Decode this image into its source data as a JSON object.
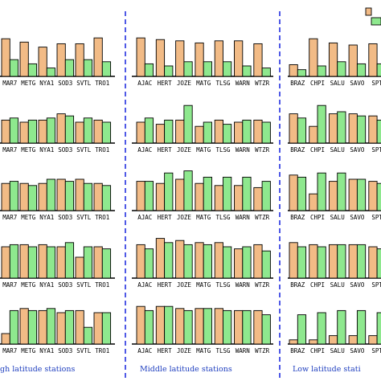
{
  "colors": {
    "series_a": "#f2bb86",
    "series_b": "#8ee88e",
    "divider": "#2330e0",
    "group_label": "#1f3fbf"
  },
  "chart_data": {
    "type": "bar",
    "grid": false,
    "legend": "top-right",
    "groups": [
      {
        "label": "High latitude stations",
        "label_visible": "gh latitude stations",
        "stations": [
          "MAR7",
          "METG",
          "NYA1",
          "SOD3",
          "SVTL",
          "TRO1"
        ]
      },
      {
        "label": "Middle latitude stations",
        "label_visible": "Middle latitude stations",
        "stations": [
          "AJAC",
          "HERT",
          "JOZE",
          "MATG",
          "TLSG",
          "WARN",
          "WTZR"
        ]
      },
      {
        "label": "Low latitude stations",
        "label_visible": "Low latitude stati",
        "stations": [
          "BRAZ",
          "CHPI",
          "SALU",
          "SAVO",
          "SPT"
        ]
      }
    ],
    "panels": [
      {
        "series": [
          {
            "values": [
              0.9,
              0.82,
              0.7,
              0.78,
              0.78,
              0.92,
              0.92,
              0.88,
              0.85,
              0.8,
              0.85,
              0.85,
              0.78,
              0.28,
              0.9,
              0.8,
              0.75,
              0.78
            ]
          },
          {
            "values": [
              0.4,
              0.3,
              0.2,
              0.4,
              0.4,
              0.35,
              0.3,
              0.25,
              0.35,
              0.35,
              0.35,
              0.25,
              0.2,
              0.16,
              0.25,
              0.35,
              0.3,
              0.3
            ]
          }
        ]
      },
      {
        "series": [
          {
            "values": [
              0.55,
              0.5,
              0.55,
              0.7,
              0.5,
              0.55,
              0.5,
              0.45,
              0.55,
              0.4,
              0.55,
              0.5,
              0.55,
              0.7,
              0.4,
              0.7,
              0.7,
              0.65
            ]
          },
          {
            "values": [
              0.6,
              0.55,
              0.6,
              0.65,
              0.6,
              0.5,
              0.6,
              0.55,
              0.9,
              0.5,
              0.45,
              0.55,
              0.5,
              0.6,
              0.9,
              0.75,
              0.65,
              0.55
            ]
          }
        ]
      },
      {
        "series": [
          {
            "values": [
              0.65,
              0.65,
              0.65,
              0.75,
              0.75,
              0.65,
              0.7,
              0.65,
              0.75,
              0.65,
              0.6,
              0.6,
              0.55,
              0.85,
              0.4,
              0.7,
              0.75,
              0.7
            ]
          },
          {
            "values": [
              0.7,
              0.6,
              0.75,
              0.7,
              0.65,
              0.6,
              0.7,
              0.9,
              0.95,
              0.8,
              0.8,
              0.8,
              0.7,
              0.8,
              0.9,
              0.9,
              0.75,
              0.65
            ]
          }
        ]
      },
      {
        "series": [
          {
            "values": [
              0.75,
              0.8,
              0.8,
              0.75,
              0.5,
              0.75,
              0.8,
              0.95,
              0.9,
              0.85,
              0.85,
              0.7,
              0.8,
              0.85,
              0.8,
              0.8,
              0.8,
              0.75
            ]
          },
          {
            "values": [
              0.8,
              0.75,
              0.75,
              0.85,
              0.75,
              0.7,
              0.7,
              0.85,
              0.8,
              0.8,
              0.75,
              0.75,
              0.65,
              0.75,
              0.75,
              0.8,
              0.8,
              0.7
            ]
          }
        ]
      },
      {
        "series": [
          {
            "values": [
              0.25,
              0.85,
              0.8,
              0.75,
              0.8,
              0.75,
              0.9,
              0.9,
              0.85,
              0.85,
              0.85,
              0.8,
              0.8,
              0.1,
              0.1,
              0.2,
              0.2,
              0.2
            ]
          },
          {
            "values": [
              0.8,
              0.8,
              0.85,
              0.8,
              0.4,
              0.75,
              0.8,
              0.9,
              0.8,
              0.85,
              0.8,
              0.8,
              0.7,
              0.7,
              0.75,
              0.8,
              0.8,
              0.75
            ]
          }
        ]
      }
    ]
  }
}
